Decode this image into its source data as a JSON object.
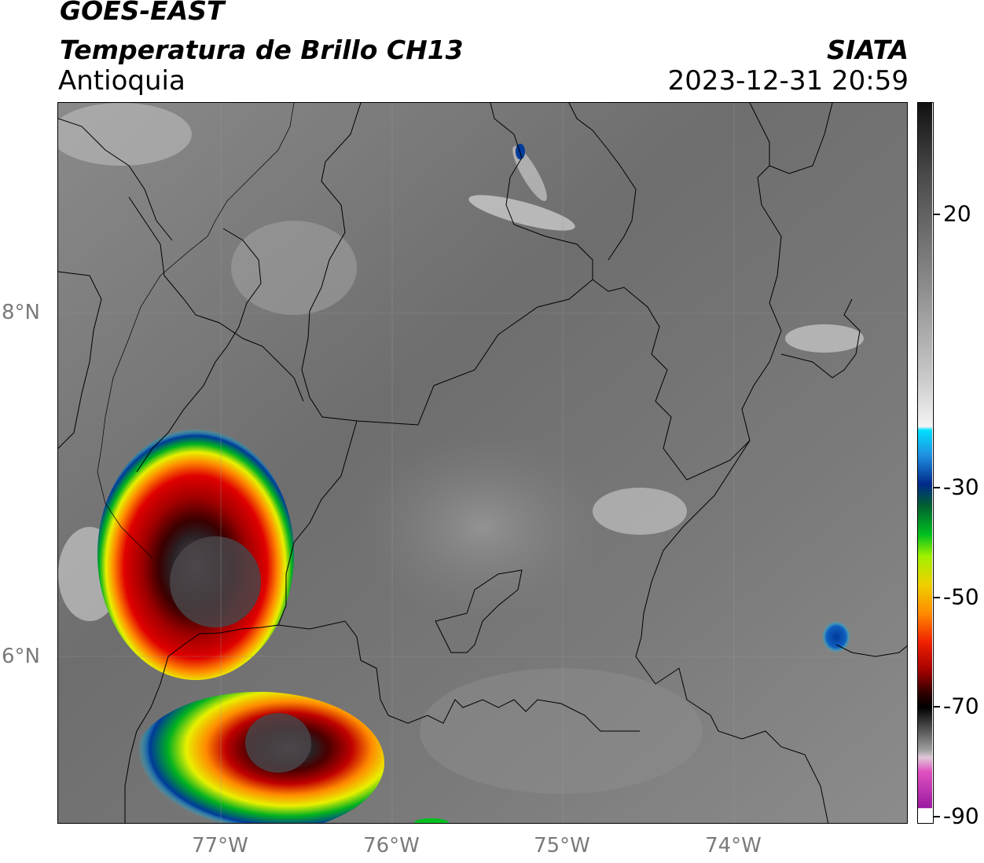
{
  "header": {
    "satellite": "GOES-EAST",
    "product": "Temperatura de Brillo CH13",
    "region": "Antioquia",
    "organization": "SIATA",
    "datetime": "2023-12-31 20:59"
  },
  "map": {
    "longitude_ticks": [
      "77°W",
      "76°W",
      "75°W",
      "74°W"
    ],
    "latitude_ticks": [
      "8°N",
      "6°N"
    ],
    "extent": {
      "lon_min": -77.95,
      "lon_max": -73.0,
      "lat_min": 4.95,
      "lat_max": 9.2
    }
  },
  "colorbar": {
    "unit_hint": "°C",
    "range": [
      -90,
      30
    ],
    "tick_labels": [
      "20",
      "-30",
      "-50",
      "-70",
      "-90"
    ],
    "colors": {
      "warm_gray_top": "#111111",
      "mid_gray": "#9a9a9a",
      "white": "#ffffff",
      "cyan": "#00d7ff",
      "blue": "#003a9a",
      "green": "#00c020",
      "yellow": "#f0f000",
      "orange": "#ff8a00",
      "red": "#e00000",
      "dark_red": "#6a0000",
      "black": "#000000",
      "pink": "#e070c0",
      "purple": "#9a1aa0"
    }
  },
  "features": [
    {
      "name": "convective-cell-west",
      "min_temp": "-80"
    },
    {
      "name": "convective-cell-southwest",
      "min_temp": "-80"
    },
    {
      "name": "small-cell-east",
      "min_temp": "-35"
    }
  ]
}
